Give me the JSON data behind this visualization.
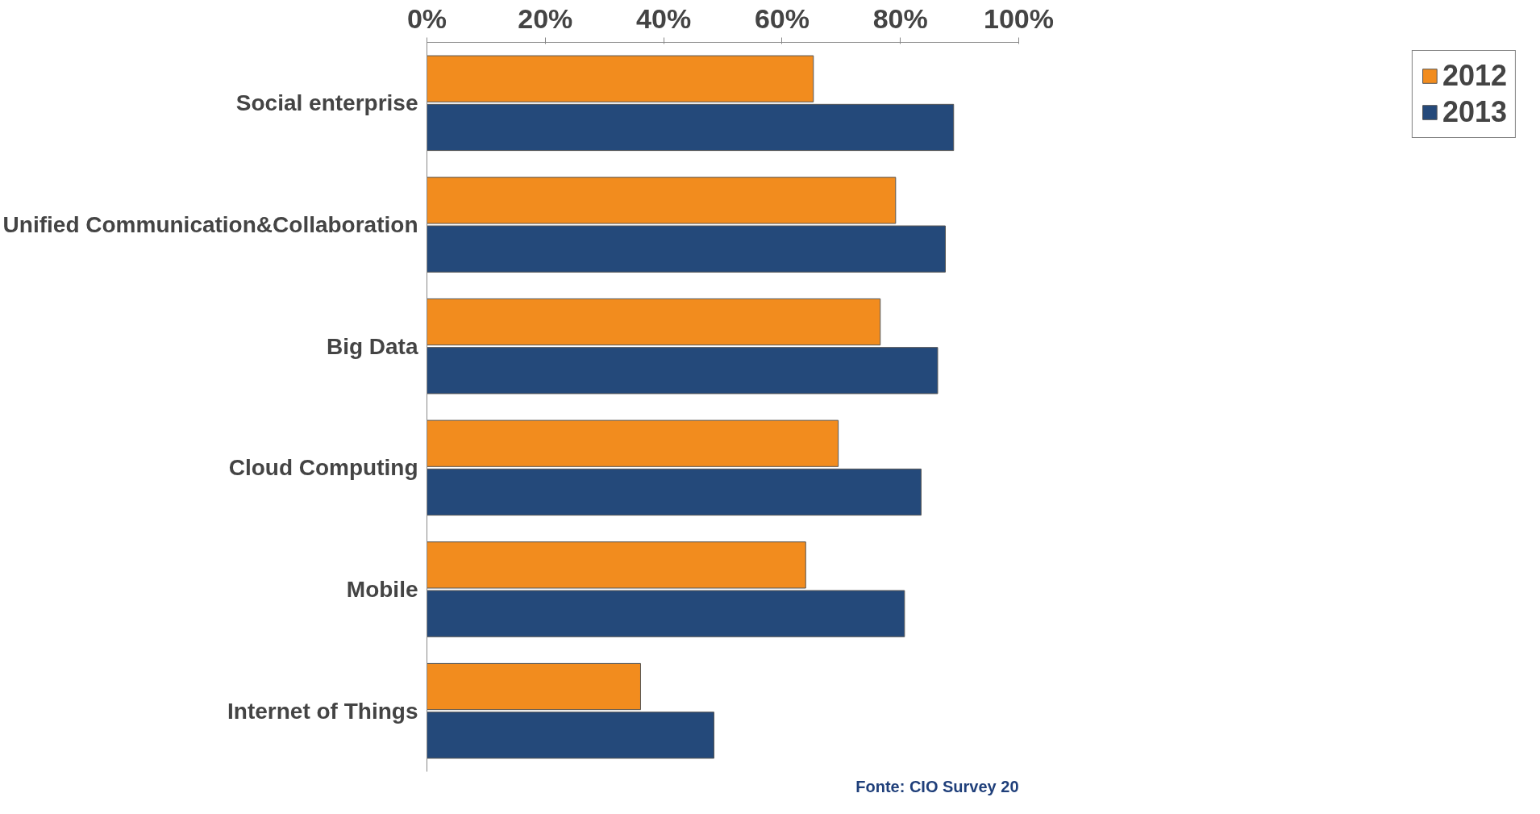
{
  "chart_data": {
    "type": "bar",
    "orientation": "horizontal",
    "categories": [
      "Social enterprise",
      "Unified Communication&Collaboration",
      "Big Data",
      "Cloud Computing",
      "Mobile",
      "Internet of Things"
    ],
    "series": [
      {
        "name": "2012",
        "color": "#f28c1e",
        "values": [
          65.3,
          79.2,
          76.6,
          69.5,
          64.0,
          36.1
        ]
      },
      {
        "name": "2013",
        "color": "#24497a",
        "values": [
          89.0,
          87.6,
          86.3,
          83.5,
          80.7,
          48.5
        ]
      }
    ],
    "xlim": [
      0,
      100
    ],
    "xticks": [
      {
        "value": 0,
        "label": "0%"
      },
      {
        "value": 20,
        "label": "20%"
      },
      {
        "value": 40,
        "label": "40%"
      },
      {
        "value": 60,
        "label": "60%"
      },
      {
        "value": 80,
        "label": "80%"
      },
      {
        "value": 100,
        "label": "100%"
      }
    ],
    "grid": false,
    "legend": "right",
    "annotations": [
      "Fonte: CIO Survey 20"
    ]
  }
}
